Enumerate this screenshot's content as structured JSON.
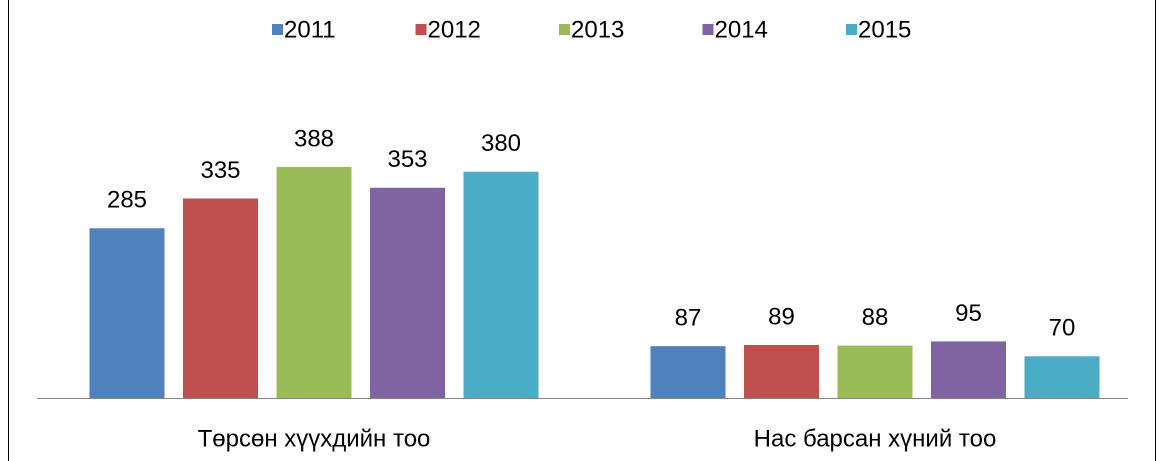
{
  "chart_data": {
    "type": "bar",
    "categories": [
      "Төрсөн хүүхдийн тоо",
      "Нас барсан хүний тоо"
    ],
    "series": [
      {
        "name": "2011",
        "color": "#4f81bd",
        "values": [
          285,
          87
        ]
      },
      {
        "name": "2012",
        "color": "#c0504d",
        "values": [
          335,
          89
        ]
      },
      {
        "name": "2013",
        "color": "#9bbb59",
        "values": [
          388,
          88
        ]
      },
      {
        "name": "2014",
        "color": "#8064a2",
        "values": [
          353,
          95
        ]
      },
      {
        "name": "2015",
        "color": "#4bacc6",
        "values": [
          380,
          70
        ]
      }
    ],
    "ylim": [
      0,
      450
    ],
    "legend": "top",
    "data_labels": true
  }
}
